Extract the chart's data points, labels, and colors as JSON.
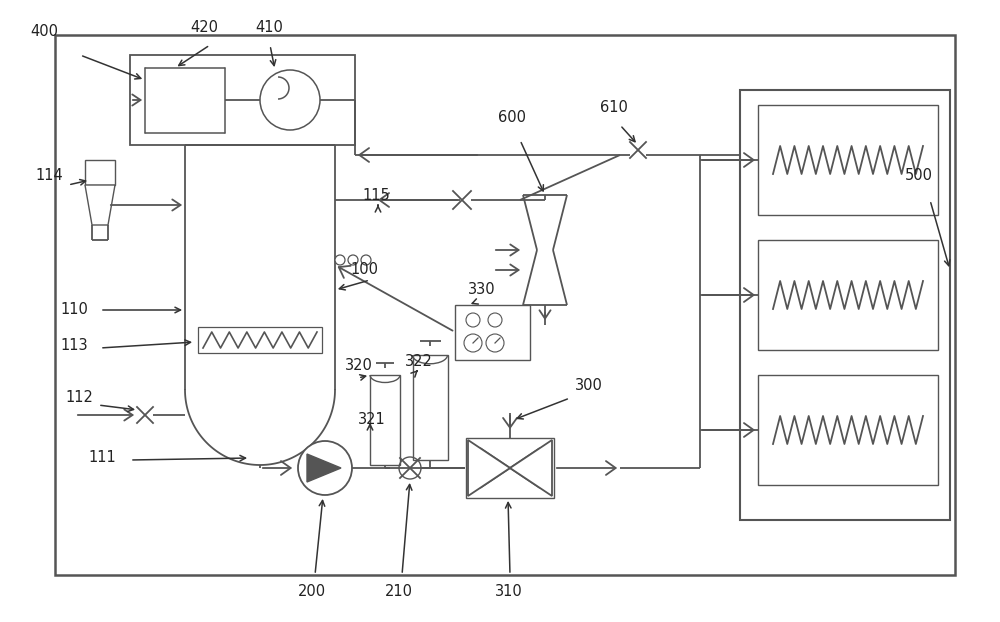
{
  "fig_width": 10.0,
  "fig_height": 6.22,
  "dpi": 100,
  "bg_color": "#ffffff",
  "lc": "#555555",
  "lw": 1.3,
  "fs": 10.5
}
